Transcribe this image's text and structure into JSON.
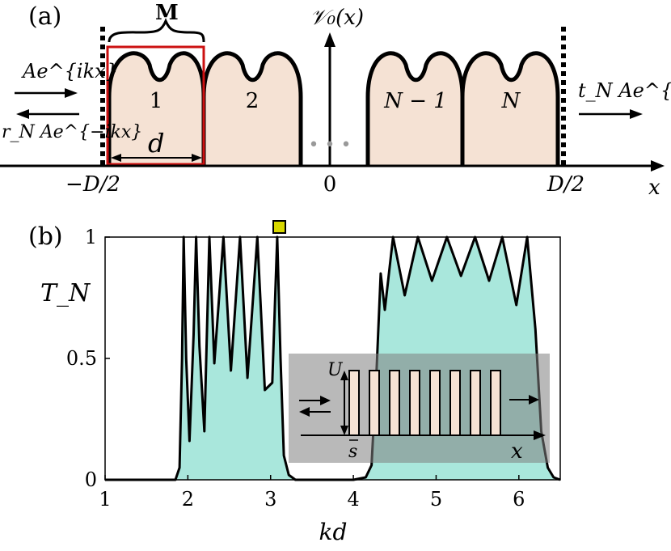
{
  "panel_a": {
    "label": "(a)",
    "potential_label": "𝒱₀(x)",
    "bracket_label": "M",
    "cell_width_label": "d",
    "cells": [
      "1",
      "2",
      "N − 1",
      "N"
    ],
    "ellipsis": "• • •",
    "incident_label": "Ae^{ikx}",
    "reflected_label": "r_N Ae^{−ikx}",
    "transmitted_label": "t_N Ae^{ikx}",
    "x_ticks": [
      "−D/2",
      "0",
      "D/2"
    ],
    "x_axis_label": "x",
    "colors": {
      "barrier_fill": "#f5e2d4",
      "frame": "#cc1111",
      "dots": "#999999"
    }
  },
  "panel_b": {
    "label": "(b)",
    "marker_color": "#d8d800",
    "inset": {
      "height_label": "U",
      "gap_label": "s",
      "axis_label": "x",
      "barrier_count": 8,
      "background": "#b0b0b0"
    }
  },
  "chart_data": {
    "type": "line",
    "xlabel": "kd",
    "ylabel": "T_N",
    "xlim": [
      1,
      6.5
    ],
    "ylim": [
      0,
      1
    ],
    "x_ticks": [
      "1",
      "2",
      "3",
      "4",
      "5",
      "6"
    ],
    "y_ticks": [
      "0",
      "0.5",
      "1"
    ],
    "fill_color": "#a9e7dc",
    "line_color": "#000000",
    "series": [
      {
        "values": [
          [
            1.0,
            0.0
          ],
          [
            1.85,
            0.0
          ],
          [
            1.9,
            0.05
          ],
          [
            1.93,
            0.5
          ],
          [
            1.95,
            1.0
          ],
          [
            1.98,
            0.5
          ],
          [
            2.02,
            0.16
          ],
          [
            2.07,
            0.6
          ],
          [
            2.1,
            1.0
          ],
          [
            2.14,
            0.55
          ],
          [
            2.2,
            0.2
          ],
          [
            2.26,
            1.0
          ],
          [
            2.32,
            0.48
          ],
          [
            2.43,
            1.0
          ],
          [
            2.52,
            0.45
          ],
          [
            2.63,
            1.0
          ],
          [
            2.72,
            0.42
          ],
          [
            2.84,
            1.0
          ],
          [
            2.93,
            0.37
          ],
          [
            3.02,
            0.4
          ],
          [
            3.08,
            1.0
          ],
          [
            3.12,
            0.5
          ],
          [
            3.16,
            0.1
          ],
          [
            3.22,
            0.02
          ],
          [
            3.3,
            0.0
          ],
          [
            4.0,
            0.0
          ],
          [
            4.15,
            0.01
          ],
          [
            4.22,
            0.06
          ],
          [
            4.28,
            0.45
          ],
          [
            4.33,
            0.85
          ],
          [
            4.38,
            0.7
          ],
          [
            4.48,
            1.0
          ],
          [
            4.62,
            0.76
          ],
          [
            4.78,
            1.0
          ],
          [
            4.95,
            0.82
          ],
          [
            5.13,
            1.0
          ],
          [
            5.3,
            0.84
          ],
          [
            5.47,
            1.0
          ],
          [
            5.64,
            0.82
          ],
          [
            5.8,
            1.0
          ],
          [
            5.97,
            0.72
          ],
          [
            6.1,
            1.0
          ],
          [
            6.2,
            0.62
          ],
          [
            6.27,
            0.2
          ],
          [
            6.35,
            0.05
          ],
          [
            6.42,
            0.01
          ],
          [
            6.5,
            0.0
          ]
        ]
      }
    ]
  }
}
